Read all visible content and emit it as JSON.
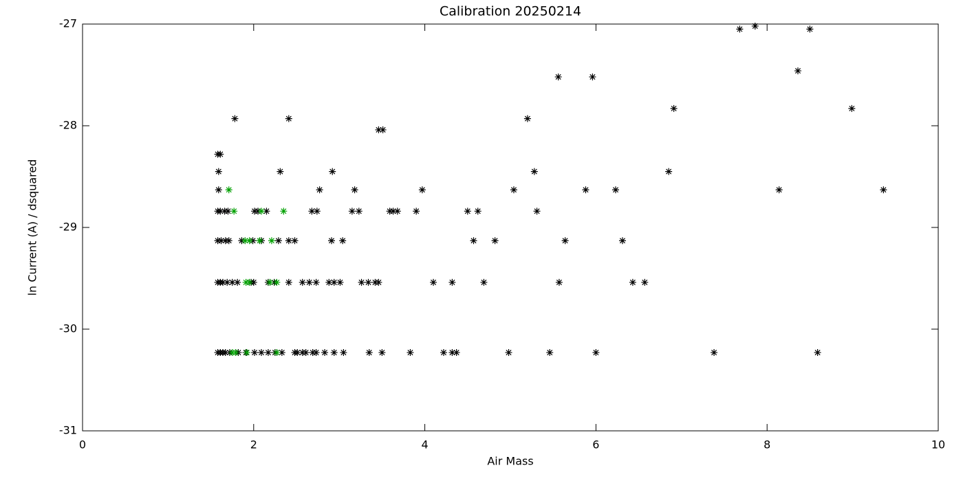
{
  "chart_data": {
    "type": "scatter",
    "title": "Calibration 20250214",
    "x_label": "Air Mass",
    "y_label": "ln Current (A) / dsquared",
    "xlim": [
      0,
      10
    ],
    "xticks": [
      0,
      2,
      4,
      6,
      8,
      10
    ],
    "ylim": [
      -31,
      -27
    ],
    "yticks": [
      -31,
      -30,
      -29,
      -28,
      -27
    ],
    "grid": false,
    "marker": "asterisk",
    "series": [
      {
        "color": "#000000",
        "x": [
          1.58,
          1.61,
          1.64,
          1.67,
          1.72,
          1.82,
          1.91,
          2.01,
          2.09,
          2.17,
          2.25,
          2.33,
          2.48,
          2.51,
          2.57,
          2.61,
          2.69,
          2.73,
          2.83,
          2.94,
          3.05,
          3.35,
          3.5,
          3.83,
          4.22,
          4.32,
          4.37,
          4.98,
          5.46,
          6.0,
          7.38,
          8.59,
          1.58,
          1.61,
          1.64,
          1.69,
          1.75,
          1.81,
          1.97,
          2.0,
          2.17,
          2.24,
          2.41,
          2.57,
          2.65,
          2.73,
          2.88,
          2.94,
          3.01,
          3.26,
          3.34,
          3.42,
          3.46,
          4.1,
          4.32,
          4.69,
          5.57,
          6.43,
          6.57,
          1.58,
          1.62,
          1.67,
          1.71,
          1.86,
          1.99,
          2.09,
          2.29,
          2.41,
          2.48,
          2.91,
          3.04,
          4.57,
          4.82,
          5.64,
          6.31,
          1.58,
          1.61,
          1.66,
          1.7,
          2.01,
          2.05,
          2.15,
          2.68,
          2.74,
          3.15,
          3.23,
          3.59,
          3.63,
          3.68,
          3.9,
          4.5,
          4.62,
          5.31,
          1.59,
          2.77,
          3.18,
          3.97,
          5.04,
          5.88,
          6.23,
          8.14,
          9.36,
          1.59,
          2.31,
          2.92,
          5.28,
          6.85,
          1.58,
          1.61,
          1.78,
          2.41,
          5.2,
          3.46,
          3.51,
          5.56,
          5.96,
          8.36,
          6.91,
          8.99,
          7.68,
          8.5,
          7.86
        ],
        "values": [
          -30.23,
          -30.23,
          -30.23,
          -30.23,
          -30.23,
          -30.23,
          -30.23,
          -30.23,
          -30.23,
          -30.23,
          -30.23,
          -30.23,
          -30.23,
          -30.23,
          -30.23,
          -30.23,
          -30.23,
          -30.23,
          -30.23,
          -30.23,
          -30.23,
          -30.23,
          -30.23,
          -30.23,
          -30.23,
          -30.23,
          -30.23,
          -30.23,
          -30.23,
          -30.23,
          -30.23,
          -30.23,
          -29.54,
          -29.54,
          -29.54,
          -29.54,
          -29.54,
          -29.54,
          -29.54,
          -29.54,
          -29.54,
          -29.54,
          -29.54,
          -29.54,
          -29.54,
          -29.54,
          -29.54,
          -29.54,
          -29.54,
          -29.54,
          -29.54,
          -29.54,
          -29.54,
          -29.54,
          -29.54,
          -29.54,
          -29.54,
          -29.54,
          -29.54,
          -29.13,
          -29.13,
          -29.13,
          -29.13,
          -29.13,
          -29.13,
          -29.13,
          -29.13,
          -29.13,
          -29.13,
          -29.13,
          -29.13,
          -29.13,
          -29.13,
          -29.13,
          -29.13,
          -28.84,
          -28.84,
          -28.84,
          -28.84,
          -28.84,
          -28.84,
          -28.84,
          -28.84,
          -28.84,
          -28.84,
          -28.84,
          -28.84,
          -28.84,
          -28.84,
          -28.84,
          -28.84,
          -28.84,
          -28.84,
          -28.63,
          -28.63,
          -28.63,
          -28.63,
          -28.63,
          -28.63,
          -28.63,
          -28.63,
          -28.63,
          -28.45,
          -28.45,
          -28.45,
          -28.45,
          -28.45,
          -28.28,
          -28.28,
          -27.93,
          -27.93,
          -27.93,
          -28.04,
          -28.04,
          -27.52,
          -27.52,
          -27.46,
          -27.83,
          -27.83,
          -27.05,
          -27.05,
          -27.02
        ]
      },
      {
        "color": "#00a000",
        "x": [
          1.75,
          1.79,
          1.92,
          2.27,
          1.91,
          1.95,
          2.19,
          2.27,
          1.9,
          1.95,
          2.07,
          2.21,
          1.77,
          2.09,
          2.35,
          1.71
        ],
        "values": [
          -30.23,
          -30.23,
          -30.23,
          -30.23,
          -29.54,
          -29.54,
          -29.54,
          -29.54,
          -29.13,
          -29.13,
          -29.13,
          -29.13,
          -28.84,
          -28.84,
          -28.84,
          -28.63
        ]
      }
    ]
  }
}
